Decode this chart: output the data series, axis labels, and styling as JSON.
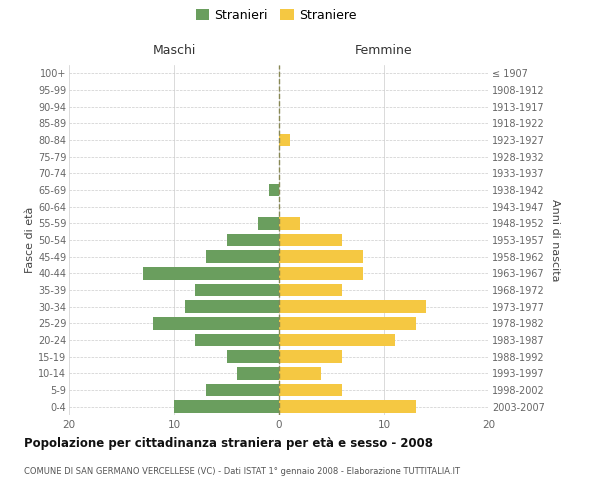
{
  "age_groups": [
    "0-4",
    "5-9",
    "10-14",
    "15-19",
    "20-24",
    "25-29",
    "30-34",
    "35-39",
    "40-44",
    "45-49",
    "50-54",
    "55-59",
    "60-64",
    "65-69",
    "70-74",
    "75-79",
    "80-84",
    "85-89",
    "90-94",
    "95-99",
    "100+"
  ],
  "birth_years": [
    "2003-2007",
    "1998-2002",
    "1993-1997",
    "1988-1992",
    "1983-1987",
    "1978-1982",
    "1973-1977",
    "1968-1972",
    "1963-1967",
    "1958-1962",
    "1953-1957",
    "1948-1952",
    "1943-1947",
    "1938-1942",
    "1933-1937",
    "1928-1932",
    "1923-1927",
    "1918-1922",
    "1913-1917",
    "1908-1912",
    "≤ 1907"
  ],
  "maschi": [
    10,
    7,
    4,
    5,
    8,
    12,
    9,
    8,
    13,
    7,
    5,
    2,
    0,
    1,
    0,
    0,
    0,
    0,
    0,
    0,
    0
  ],
  "femmine": [
    13,
    6,
    4,
    6,
    11,
    13,
    14,
    6,
    8,
    8,
    6,
    2,
    0,
    0,
    0,
    0,
    1,
    0,
    0,
    0,
    0
  ],
  "color_maschi": "#6a9e5e",
  "color_femmine": "#f5c842",
  "title": "Popolazione per cittadinanza straniera per età e sesso - 2008",
  "subtitle": "COMUNE DI SAN GERMANO VERCELLESE (VC) - Dati ISTAT 1° gennaio 2008 - Elaborazione TUTTITALIA.IT",
  "ylabel_left": "Fasce di età",
  "ylabel_right": "Anni di nascita",
  "xlabel_maschi": "Maschi",
  "xlabel_femmine": "Femmine",
  "legend_maschi": "Stranieri",
  "legend_femmine": "Straniere",
  "xlim": 20,
  "background_color": "#ffffff",
  "grid_color": "#cccccc"
}
